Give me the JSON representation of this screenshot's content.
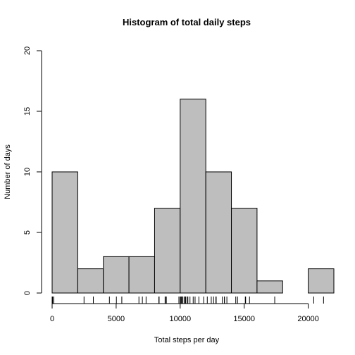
{
  "chart_data": {
    "type": "bar",
    "title": "Histogram of total daily steps",
    "xlabel": "Total steps per day",
    "ylabel": "Number of days",
    "bins": [
      {
        "start": 0,
        "end": 2000,
        "count": 10
      },
      {
        "start": 2000,
        "end": 4000,
        "count": 2
      },
      {
        "start": 4000,
        "end": 6000,
        "count": 3
      },
      {
        "start": 6000,
        "end": 8000,
        "count": 3
      },
      {
        "start": 8000,
        "end": 10000,
        "count": 7
      },
      {
        "start": 10000,
        "end": 12000,
        "count": 16
      },
      {
        "start": 12000,
        "end": 14000,
        "count": 10
      },
      {
        "start": 14000,
        "end": 16000,
        "count": 7
      },
      {
        "start": 16000,
        "end": 18000,
        "count": 1
      },
      {
        "start": 18000,
        "end": 20000,
        "count": 0
      },
      {
        "start": 20000,
        "end": 22000,
        "count": 2
      }
    ],
    "xlim": [
      0,
      22000
    ],
    "ylim": [
      0,
      20
    ],
    "x_ticks": [
      0,
      5000,
      10000,
      15000,
      20000
    ],
    "y_ticks": [
      0,
      5,
      10,
      15,
      20
    ],
    "rug": [
      0,
      41,
      126,
      2492,
      3219,
      4472,
      5018,
      5441,
      6778,
      7047,
      7336,
      8334,
      8355,
      8821,
      8841,
      8918,
      9900,
      10000,
      10056,
      10119,
      10139,
      10183,
      10304,
      10395,
      10439,
      10571,
      10600,
      10765,
      11015,
      11162,
      11458,
      11834,
      12116,
      12426,
      12608,
      12787,
      12811,
      13294,
      13452,
      13460,
      13646,
      14339,
      14478,
      15084,
      15110,
      15414,
      17382,
      20427,
      21194
    ],
    "bar_fill": "#bebebe",
    "bar_stroke": "#000000",
    "grid": false,
    "legend": "none"
  }
}
